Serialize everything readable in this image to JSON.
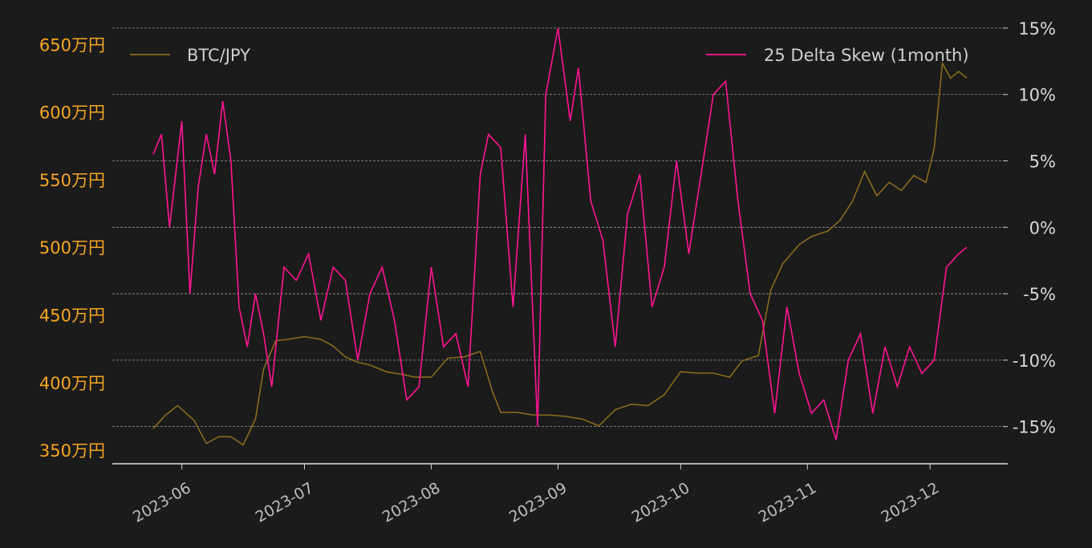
{
  "chart_data": {
    "type": "line",
    "legend": {
      "placement": "top",
      "btc_label": "BTC/JPY",
      "skew_label": "25 Delta Skew (1month)"
    },
    "colors": {
      "btc": "#8a6a1e",
      "skew": "#ff1493",
      "left_ticks": "#f5a623",
      "right_ticks": "#d9d9d9",
      "background": "#1b1b1b"
    },
    "left_axis": {
      "ticks": [
        "350万円",
        "400万円",
        "450万円",
        "500万円",
        "550万円",
        "600万円",
        "650万円"
      ],
      "tick_values": [
        350,
        400,
        450,
        500,
        550,
        600,
        650
      ],
      "ylim": [
        340,
        665
      ]
    },
    "right_axis": {
      "ticks": [
        "-15%",
        "-10%",
        "-5%",
        "0%",
        "5%",
        "10%",
        "15%"
      ],
      "tick_values": [
        -15,
        -10,
        -5,
        0,
        5,
        10,
        15
      ],
      "ylim": [
        -17.8,
        15.3
      ]
    },
    "x_axis": {
      "ticks": [
        "2023-06",
        "2023-07",
        "2023-08",
        "2023-09",
        "2023-10",
        "2023-11",
        "2023-12"
      ],
      "tick_dates": [
        "2023-06-01",
        "2023-07-01",
        "2023-08-01",
        "2023-09-01",
        "2023-10-01",
        "2023-11-01",
        "2023-12-01"
      ],
      "xlim": [
        "2023-05-15",
        "2023-12-20"
      ]
    },
    "grid": "horizontal-dashed",
    "btc_series": {
      "name": "BTC/JPY",
      "dates": [
        "2023-05-25",
        "2023-05-28",
        "2023-05-31",
        "2023-06-04",
        "2023-06-07",
        "2023-06-10",
        "2023-06-13",
        "2023-06-16",
        "2023-06-19",
        "2023-06-21",
        "2023-06-24",
        "2023-06-27",
        "2023-07-01",
        "2023-07-05",
        "2023-07-08",
        "2023-07-11",
        "2023-07-14",
        "2023-07-17",
        "2023-07-21",
        "2023-07-25",
        "2023-07-28",
        "2023-08-01",
        "2023-08-05",
        "2023-08-09",
        "2023-08-13",
        "2023-08-16",
        "2023-08-18",
        "2023-08-22",
        "2023-08-26",
        "2023-08-30",
        "2023-09-03",
        "2023-09-07",
        "2023-09-11",
        "2023-09-15",
        "2023-09-19",
        "2023-09-23",
        "2023-09-27",
        "2023-10-01",
        "2023-10-05",
        "2023-10-09",
        "2023-10-13",
        "2023-10-16",
        "2023-10-20",
        "2023-10-23",
        "2023-10-26",
        "2023-10-30",
        "2023-11-02",
        "2023-11-06",
        "2023-11-09",
        "2023-11-12",
        "2023-11-15",
        "2023-11-18",
        "2023-11-21",
        "2023-11-24",
        "2023-11-27",
        "2023-11-30",
        "2023-12-02",
        "2023-12-04",
        "2023-12-06",
        "2023-12-08",
        "2023-12-10"
      ],
      "values": [
        366,
        376,
        383,
        372,
        355,
        360,
        360,
        354,
        373,
        410,
        431,
        432,
        434,
        432,
        427,
        419,
        415,
        413,
        408,
        406,
        404,
        404,
        418,
        419,
        423,
        393,
        378,
        378,
        376,
        376,
        375,
        373,
        368,
        380,
        384,
        383,
        391,
        408,
        407,
        407,
        404,
        416,
        420,
        468,
        488,
        502,
        508,
        512,
        520,
        534,
        556,
        538,
        548,
        542,
        553,
        548,
        573,
        636,
        625,
        630,
        625
      ]
    },
    "skew_series": {
      "name": "25 Delta Skew (1month)",
      "dates": [
        "2023-05-25",
        "2023-05-27",
        "2023-05-29",
        "2023-06-01",
        "2023-06-03",
        "2023-06-05",
        "2023-06-07",
        "2023-06-09",
        "2023-06-11",
        "2023-06-13",
        "2023-06-15",
        "2023-06-17",
        "2023-06-19",
        "2023-06-21",
        "2023-06-23",
        "2023-06-26",
        "2023-06-29",
        "2023-07-02",
        "2023-07-05",
        "2023-07-08",
        "2023-07-11",
        "2023-07-14",
        "2023-07-17",
        "2023-07-20",
        "2023-07-23",
        "2023-07-26",
        "2023-07-29",
        "2023-08-01",
        "2023-08-04",
        "2023-08-07",
        "2023-08-10",
        "2023-08-13",
        "2023-08-15",
        "2023-08-18",
        "2023-08-21",
        "2023-08-24",
        "2023-08-27",
        "2023-08-29",
        "2023-09-01",
        "2023-09-04",
        "2023-09-06",
        "2023-09-09",
        "2023-09-12",
        "2023-09-15",
        "2023-09-18",
        "2023-09-21",
        "2023-09-24",
        "2023-09-27",
        "2023-09-30",
        "2023-10-03",
        "2023-10-06",
        "2023-10-09",
        "2023-10-12",
        "2023-10-15",
        "2023-10-18",
        "2023-10-21",
        "2023-10-24",
        "2023-10-27",
        "2023-10-30",
        "2023-11-02",
        "2023-11-05",
        "2023-11-08",
        "2023-11-11",
        "2023-11-14",
        "2023-11-17",
        "2023-11-20",
        "2023-11-23",
        "2023-11-26",
        "2023-11-29",
        "2023-12-02",
        "2023-12-05",
        "2023-12-08",
        "2023-12-10"
      ],
      "values": [
        5.5,
        7,
        0,
        8,
        -5,
        3,
        7,
        4,
        9.5,
        5,
        -6,
        -9,
        -5,
        -8,
        -12,
        -3,
        -4,
        -2,
        -7,
        -3,
        -4,
        -10,
        -5,
        -3,
        -7,
        -13,
        -12,
        -3,
        -9,
        -8,
        -12,
        4,
        7,
        6,
        -6,
        7,
        -15,
        10,
        15,
        8,
        12,
        2,
        -1,
        -9,
        1,
        4,
        -6,
        -3,
        5,
        -2,
        4,
        10,
        11,
        2,
        -5,
        -7,
        -14,
        -6,
        -11,
        -14,
        -13,
        -16,
        -10,
        -8,
        -14,
        -9,
        -12,
        -9,
        -11,
        -10,
        -3,
        -2,
        -1.5
      ]
    }
  }
}
